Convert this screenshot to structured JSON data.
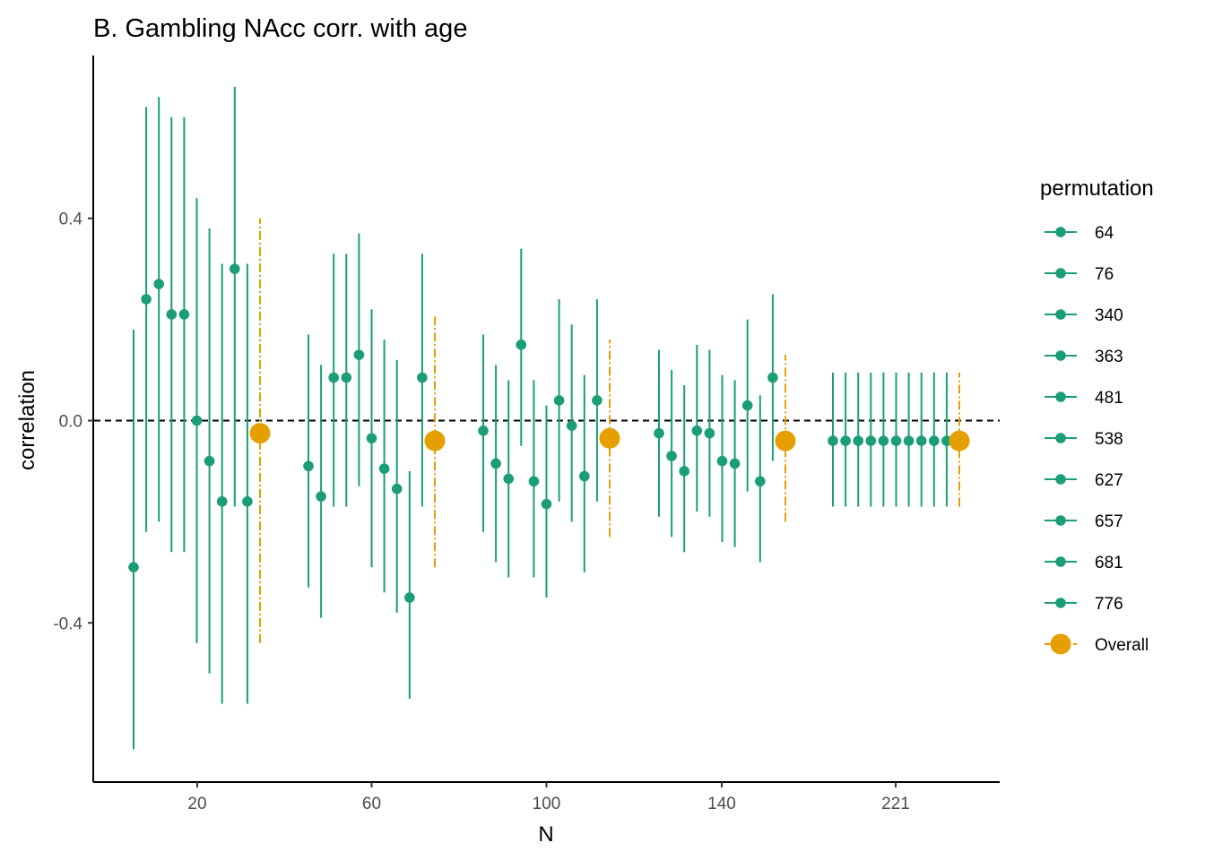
{
  "chart_data": {
    "type": "scatter",
    "title": "B. Gambling NAcc corr. with age",
    "xlabel": "N",
    "ylabel": "correlation",
    "x_ticks": [
      "20",
      "60",
      "100",
      "140",
      "221"
    ],
    "y_ticks": [
      -0.4,
      0.0,
      0.4
    ],
    "y_tick_labels": [
      "-0.4",
      "0.0",
      "0.4"
    ],
    "ylim": [
      -0.715,
      0.715
    ],
    "reference_line_y": 0.0,
    "legend": {
      "title": "permutation",
      "placement": "right",
      "entries": [
        "64",
        "76",
        "340",
        "363",
        "481",
        "538",
        "627",
        "657",
        "681",
        "776",
        "Overall"
      ]
    },
    "colors": {
      "permutation": "#1b9e77",
      "overall": "#e69f00"
    },
    "groups": [
      {
        "n": "20",
        "points": [
          {
            "permutation": "64",
            "r": -0.29,
            "lo": -0.65,
            "hi": 0.18
          },
          {
            "permutation": "76",
            "r": 0.24,
            "lo": -0.22,
            "hi": 0.62
          },
          {
            "permutation": "340",
            "r": 0.27,
            "lo": -0.2,
            "hi": 0.64
          },
          {
            "permutation": "363",
            "r": 0.21,
            "lo": -0.26,
            "hi": 0.6
          },
          {
            "permutation": "481",
            "r": 0.21,
            "lo": -0.26,
            "hi": 0.6
          },
          {
            "permutation": "538",
            "r": 0.0,
            "lo": -0.44,
            "hi": 0.44
          },
          {
            "permutation": "627",
            "r": -0.08,
            "lo": -0.5,
            "hi": 0.38
          },
          {
            "permutation": "657",
            "r": -0.16,
            "lo": -0.56,
            "hi": 0.31
          },
          {
            "permutation": "681",
            "r": 0.3,
            "lo": -0.17,
            "hi": 0.66
          },
          {
            "permutation": "776",
            "r": -0.16,
            "lo": -0.56,
            "hi": 0.31
          }
        ],
        "overall": {
          "r": -0.025,
          "lo": -0.44,
          "hi": 0.4
        }
      },
      {
        "n": "60",
        "points": [
          {
            "permutation": "64",
            "r": -0.09,
            "lo": -0.33,
            "hi": 0.17
          },
          {
            "permutation": "76",
            "r": -0.15,
            "lo": -0.39,
            "hi": 0.11
          },
          {
            "permutation": "340",
            "r": 0.085,
            "lo": -0.17,
            "hi": 0.33
          },
          {
            "permutation": "363",
            "r": 0.085,
            "lo": -0.17,
            "hi": 0.33
          },
          {
            "permutation": "481",
            "r": 0.13,
            "lo": -0.13,
            "hi": 0.37
          },
          {
            "permutation": "538",
            "r": -0.035,
            "lo": -0.29,
            "hi": 0.22
          },
          {
            "permutation": "627",
            "r": -0.095,
            "lo": -0.34,
            "hi": 0.16
          },
          {
            "permutation": "657",
            "r": -0.135,
            "lo": -0.38,
            "hi": 0.12
          },
          {
            "permutation": "681",
            "r": -0.35,
            "lo": -0.55,
            "hi": -0.1
          },
          {
            "permutation": "776",
            "r": 0.085,
            "lo": -0.17,
            "hi": 0.33
          }
        ],
        "overall": {
          "r": -0.04,
          "lo": -0.29,
          "hi": 0.21
        }
      },
      {
        "n": "100",
        "points": [
          {
            "permutation": "64",
            "r": -0.02,
            "lo": -0.22,
            "hi": 0.17
          },
          {
            "permutation": "76",
            "r": -0.085,
            "lo": -0.28,
            "hi": 0.11
          },
          {
            "permutation": "340",
            "r": -0.115,
            "lo": -0.31,
            "hi": 0.08
          },
          {
            "permutation": "363",
            "r": 0.15,
            "lo": -0.05,
            "hi": 0.34
          },
          {
            "permutation": "481",
            "r": -0.12,
            "lo": -0.31,
            "hi": 0.08
          },
          {
            "permutation": "538",
            "r": -0.165,
            "lo": -0.35,
            "hi": 0.03
          },
          {
            "permutation": "627",
            "r": 0.04,
            "lo": -0.16,
            "hi": 0.24
          },
          {
            "permutation": "657",
            "r": -0.01,
            "lo": -0.2,
            "hi": 0.19
          },
          {
            "permutation": "681",
            "r": -0.11,
            "lo": -0.3,
            "hi": 0.09
          },
          {
            "permutation": "776",
            "r": 0.04,
            "lo": -0.16,
            "hi": 0.24
          }
        ],
        "overall": {
          "r": -0.035,
          "lo": -0.23,
          "hi": 0.16
        }
      },
      {
        "n": "140",
        "points": [
          {
            "permutation": "64",
            "r": -0.025,
            "lo": -0.19,
            "hi": 0.14
          },
          {
            "permutation": "76",
            "r": -0.07,
            "lo": -0.23,
            "hi": 0.1
          },
          {
            "permutation": "340",
            "r": -0.1,
            "lo": -0.26,
            "hi": 0.07
          },
          {
            "permutation": "363",
            "r": -0.02,
            "lo": -0.18,
            "hi": 0.15
          },
          {
            "permutation": "481",
            "r": -0.025,
            "lo": -0.19,
            "hi": 0.14
          },
          {
            "permutation": "538",
            "r": -0.08,
            "lo": -0.24,
            "hi": 0.09
          },
          {
            "permutation": "627",
            "r": -0.085,
            "lo": -0.25,
            "hi": 0.08
          },
          {
            "permutation": "657",
            "r": 0.03,
            "lo": -0.14,
            "hi": 0.2
          },
          {
            "permutation": "681",
            "r": -0.12,
            "lo": -0.28,
            "hi": 0.05
          },
          {
            "permutation": "776",
            "r": 0.085,
            "lo": -0.08,
            "hi": 0.25
          }
        ],
        "overall": {
          "r": -0.04,
          "lo": -0.2,
          "hi": 0.13
        }
      },
      {
        "n": "221",
        "points": [
          {
            "permutation": "64",
            "r": -0.04,
            "lo": -0.17,
            "hi": 0.095
          },
          {
            "permutation": "76",
            "r": -0.04,
            "lo": -0.17,
            "hi": 0.095
          },
          {
            "permutation": "340",
            "r": -0.04,
            "lo": -0.17,
            "hi": 0.095
          },
          {
            "permutation": "363",
            "r": -0.04,
            "lo": -0.17,
            "hi": 0.095
          },
          {
            "permutation": "481",
            "r": -0.04,
            "lo": -0.17,
            "hi": 0.095
          },
          {
            "permutation": "538",
            "r": -0.04,
            "lo": -0.17,
            "hi": 0.095
          },
          {
            "permutation": "627",
            "r": -0.04,
            "lo": -0.17,
            "hi": 0.095
          },
          {
            "permutation": "657",
            "r": -0.04,
            "lo": -0.17,
            "hi": 0.095
          },
          {
            "permutation": "681",
            "r": -0.04,
            "lo": -0.17,
            "hi": 0.095
          },
          {
            "permutation": "776",
            "r": -0.04,
            "lo": -0.17,
            "hi": 0.095
          }
        ],
        "overall": {
          "r": -0.04,
          "lo": -0.17,
          "hi": 0.095
        }
      }
    ]
  }
}
